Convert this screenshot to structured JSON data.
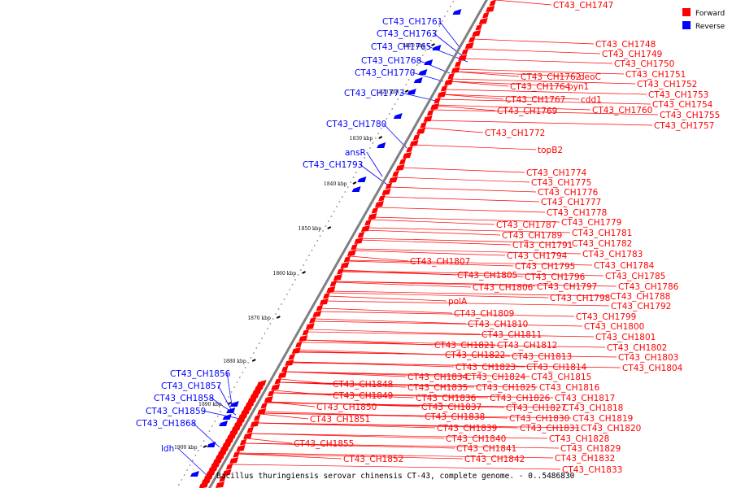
{
  "colors": {
    "forward": "#ff0000",
    "reverse": "#0000ff",
    "backbone": "#808080"
  },
  "legend": {
    "forward_label": "Forward",
    "reverse_label": "Reverse"
  },
  "caption": "Bacillus thuringiensis serovar chinensis CT-43, complete genome. - 0..5486830",
  "ticks": [
    "1810 kbp",
    "1820 kbp",
    "1830 kbp",
    "1840 kbp",
    "1850 kbp",
    "1860 kbp",
    "1870 kbp",
    "1880 kbp",
    "1890 kbp",
    "1900 kbp"
  ],
  "reverse_labels": [
    "CT43_CH1761",
    "CT43_CH1763",
    "CT43_CH1765",
    "CT43_CH1768",
    "CT43_CH1770",
    "CT43_CH1773",
    "CT43_CH1780",
    "ansR",
    "CT43_CH1793",
    "CT43_CH1856",
    "CT43_CH1857",
    "CT43_CH1858",
    "CT43_CH1859",
    "CT43_CH1868",
    "ldh"
  ],
  "forward_labels_right": [
    "CT43_CH1747",
    "CT43_CH1748",
    "CT43_CH1749",
    "CT43_CH1750",
    "CT43_CH1751",
    "CT43_CH1752",
    "CT43_CH1753",
    "CT43_CH1754",
    "CT43_CH1755",
    "CT43_CH1757",
    "CT43_CH1762",
    "deoC",
    "CT43_CH1764",
    "pyn1",
    "CT43_CH1767",
    "cdd1",
    "CT43_CH1760",
    "CT43_CH1769",
    "CT43_CH1772",
    "topB2",
    "CT43_CH1774",
    "CT43_CH1775",
    "CT43_CH1776",
    "CT43_CH1777",
    "CT43_CH1778",
    "CT43_CH1787",
    "CT43_CH1779",
    "CT43_CH1789",
    "CT43_CH1781",
    "CT43_CH1791",
    "CT43_CH1782",
    "CT43_CH1794",
    "CT43_CH1783",
    "CT43_CH1807",
    "CT43_CH1795",
    "CT43_CH1784",
    "CT43_CH1805",
    "CT43_CH1796",
    "CT43_CH1785",
    "CT43_CH1806",
    "CT43_CH1797",
    "CT43_CH1786",
    "CT43_CH1798",
    "CT43_CH1788",
    "polA",
    "CT43_CH1792",
    "CT43_CH1809",
    "CT43_CH1799",
    "CT43_CH1810",
    "CT43_CH1800",
    "CT43_CH1811",
    "CT43_CH1801",
    "CT43_CH1821",
    "CT43_CH1812",
    "CT43_CH1802",
    "CT43_CH1822",
    "CT43_CH1813",
    "CT43_CH1803",
    "CT43_CH1823",
    "CT43_CH1814",
    "CT43_CH1804",
    "CT43_CH1834",
    "CT43_CH1824",
    "CT43_CH1815",
    "CT43_CH1848",
    "CT43_CH1835",
    "CT43_CH1825",
    "CT43_CH1816",
    "CT43_CH1849",
    "CT43_CH1836",
    "CT43_CH1826",
    "CT43_CH1817",
    "CT43_CH1837",
    "CT43_CH1827",
    "CT43_CH1818",
    "CT43_CH1850",
    "CT43_CH1838",
    "CT43_CH1830",
    "CT43_CH1819",
    "CT43_CH1851",
    "CT43_CH1839",
    "CT43_CH1831",
    "CT43_CH1820",
    "CT43_CH1840",
    "CT43_CH1828",
    "CT43_CH1855",
    "CT43_CH1841",
    "CT43_CH1829",
    "CT43_CH1852",
    "CT43_CH1842",
    "CT43_CH1832",
    "CT43_CH1833"
  ]
}
